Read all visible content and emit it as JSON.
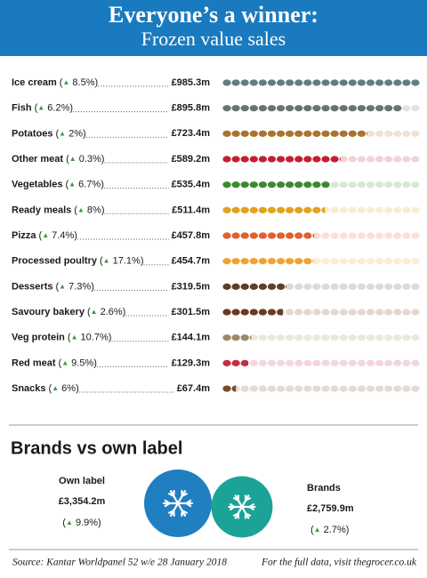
{
  "chart_data": [
    {
      "type": "pictogram",
      "title": "Everyone’s a winner:",
      "subtitle": "Frozen value sales",
      "categories": [
        "Ice cream",
        "Fish",
        "Potatoes",
        "Other meat",
        "Vegetables",
        "Ready meals",
        "Pizza",
        "Processed poultry",
        "Desserts",
        "Savoury bakery",
        "Veg protein",
        "Red meat",
        "Snacks"
      ],
      "growth_labels": [
        "(▲ 8.5%)",
        "(▲ 6.2%)",
        "(▲ 2%)",
        "(▲ 0.3%)",
        "(▲ 6.7%)",
        "(▲ 8%)",
        "(▲ 7.4%)",
        "(▲ 17.1%)",
        "(▲ 7.3%)",
        "(▲ 2.6%)",
        "(▲ 10.7%)",
        "(▲ 9.5%)",
        "(▲ 6%)"
      ],
      "values": [
        985.3,
        895.8,
        723.4,
        589.2,
        535.4,
        511.4,
        457.8,
        454.7,
        319.5,
        301.5,
        144.1,
        129.3,
        67.4
      ],
      "value_labels": [
        "£985.3m",
        "£895.8m",
        "£723.4m",
        "£589.2m",
        "£535.4m",
        "£511.4m",
        "£457.8m",
        "£454.7m",
        "£319.5m",
        "£301.5m",
        "£144.1m",
        "£129.3m",
        "£67.4m"
      ],
      "colors": [
        "#5f7f7e",
        "#6b746b",
        "#a8742e",
        "#c41f2e",
        "#3b8a2f",
        "#e2a21e",
        "#e0602e",
        "#f0a232",
        "#5e3e2a",
        "#6a3a20",
        "#9b8a66",
        "#c03040",
        "#7a4a30"
      ]
    },
    {
      "type": "bubble",
      "title": "Brands vs own label",
      "categories": [
        "Own label",
        "Brands"
      ],
      "values": [
        3354.2,
        2759.9
      ],
      "value_labels": [
        "£3,354.2m",
        "£2,759.9m"
      ],
      "growth_labels": [
        "(▲ 9.9%)",
        "(▲ 2.7%)"
      ],
      "colors": [
        "#1f7fc1",
        "#1aa396"
      ]
    }
  ],
  "footer": {
    "source": "Source: Kantar Worldpanel 52 w/e 28 January 2018",
    "link": "For the full data, visit thegrocer.co.uk"
  }
}
